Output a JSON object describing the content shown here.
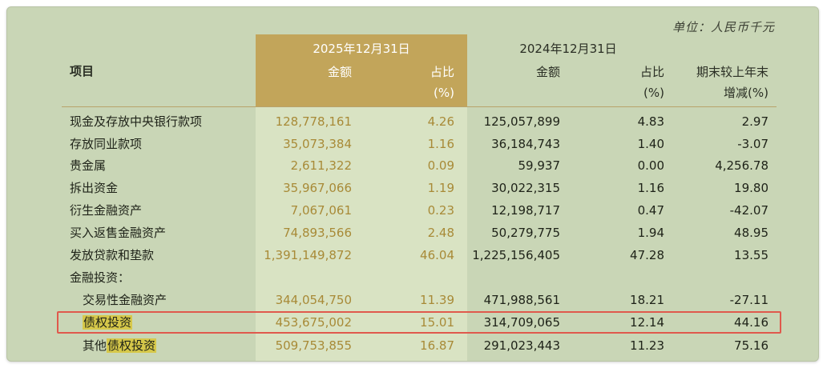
{
  "unit_label": "单位：人民币千元",
  "header": {
    "col_item": "项目",
    "date_2025": "2025年12月31日",
    "date_2024": "2024年12月31日",
    "amount": "金额",
    "ratio": "占比",
    "ratio_unit": "(%)",
    "change_line1": "期末较上年末",
    "change_line2": "增减(%)"
  },
  "rows": [
    {
      "label": "现金及存放中央银行款项",
      "a2025": "128,778,161",
      "p2025": "4.26",
      "a2024": "125,057,899",
      "p2024": "4.83",
      "chg": "2.97"
    },
    {
      "label": "存放同业款项",
      "a2025": "35,073,384",
      "p2025": "1.16",
      "a2024": "36,184,743",
      "p2024": "1.40",
      "chg": "-3.07"
    },
    {
      "label": "贵金属",
      "a2025": "2,611,322",
      "p2025": "0.09",
      "a2024": "59,937",
      "p2024": "0.00",
      "chg": "4,256.78"
    },
    {
      "label": "拆出资金",
      "a2025": "35,967,066",
      "p2025": "1.19",
      "a2024": "30,022,315",
      "p2024": "1.16",
      "chg": "19.80"
    },
    {
      "label": "衍生金融资产",
      "a2025": "7,067,061",
      "p2025": "0.23",
      "a2024": "12,198,717",
      "p2024": "0.47",
      "chg": "-42.07"
    },
    {
      "label": "买入返售金融资产",
      "a2025": "74,893,566",
      "p2025": "2.48",
      "a2024": "50,279,775",
      "p2024": "1.94",
      "chg": "48.95"
    },
    {
      "label": "发放贷款和垫款",
      "a2025": "1,391,149,872",
      "p2025": "46.04",
      "a2024": "1,225,156,405",
      "p2024": "47.28",
      "chg": "13.55"
    },
    {
      "label": "金融投资："
    },
    {
      "label": "交易性金融资产",
      "a2025": "344,054,750",
      "p2025": "11.39",
      "a2024": "471,988,561",
      "p2024": "18.21",
      "chg": "-27.11"
    },
    {
      "label": "债权投资",
      "a2025": "453,675,002",
      "p2025": "15.01",
      "a2024": "314,709,065",
      "p2024": "12.14",
      "chg": "44.16"
    },
    {
      "label_prefix": "其他",
      "label_hl": "债权投资",
      "a2025": "509,753,855",
      "p2025": "16.87",
      "a2024": "291,023,443",
      "p2024": "11.23",
      "chg": "75.16"
    }
  ],
  "colors": {
    "background": "#c9d6b6",
    "highlight_column": "#d9e3c3",
    "header_gold": "#c2a55a",
    "value_gold": "#a88a37",
    "text_highlight": "#d6c84a",
    "red_box": "#e0594c"
  }
}
